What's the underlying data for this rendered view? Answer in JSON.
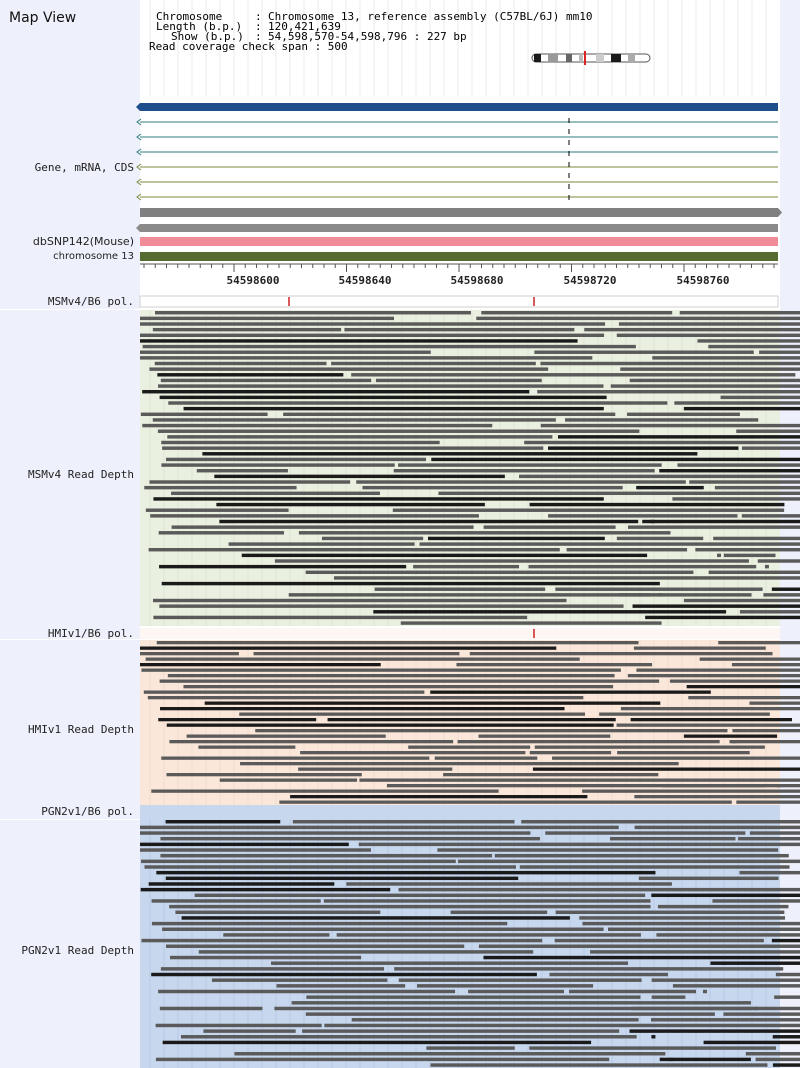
{
  "panel_title": "Map View",
  "header": {
    "chromosome_label": "Chromosome",
    "chromosome_value": "Chromosome 13, reference assembly (C57BL/6J) mm10",
    "length_label": "Length (b.p.)",
    "length_value": "120,421,639",
    "show_label": "Show (b.p.)",
    "show_value": "54,598,570-54,598,796 : 227 bp",
    "span_line": "Read coverage check span : 500"
  },
  "track_labels": {
    "gene": "Gene, mRNA, CDS",
    "dbsnp": "dbSNP142(Mouse)",
    "chromosome": "chromosome 13",
    "msm_pol": "MSMv4/B6 pol.",
    "msm_depth": "MSMv4 Read Depth",
    "hmi_pol": "HMIv1/B6 pol.",
    "hmi_depth": "HMIv1 Read Depth",
    "pgn_pol": "PGN2v1/B6 pol.",
    "pgn_depth": "PGN2v1 Read Depth"
  },
  "ruler_ticks": [
    "54598600",
    "54598640",
    "54598680",
    "54598720",
    "54598760"
  ],
  "colors": {
    "gene_bar": "#1f4e8c",
    "dbsnp_bar": "#ef8c97",
    "chromosome_bar": "#556b2f",
    "snp_mark": "#cc2222",
    "msm_bg": "#eaf0e0",
    "hmi_bg": "#fbe7da",
    "pgn_bg": "#c7d7ee",
    "read": "#5a5a5a",
    "read_dark": "#1a1a1a"
  }
}
